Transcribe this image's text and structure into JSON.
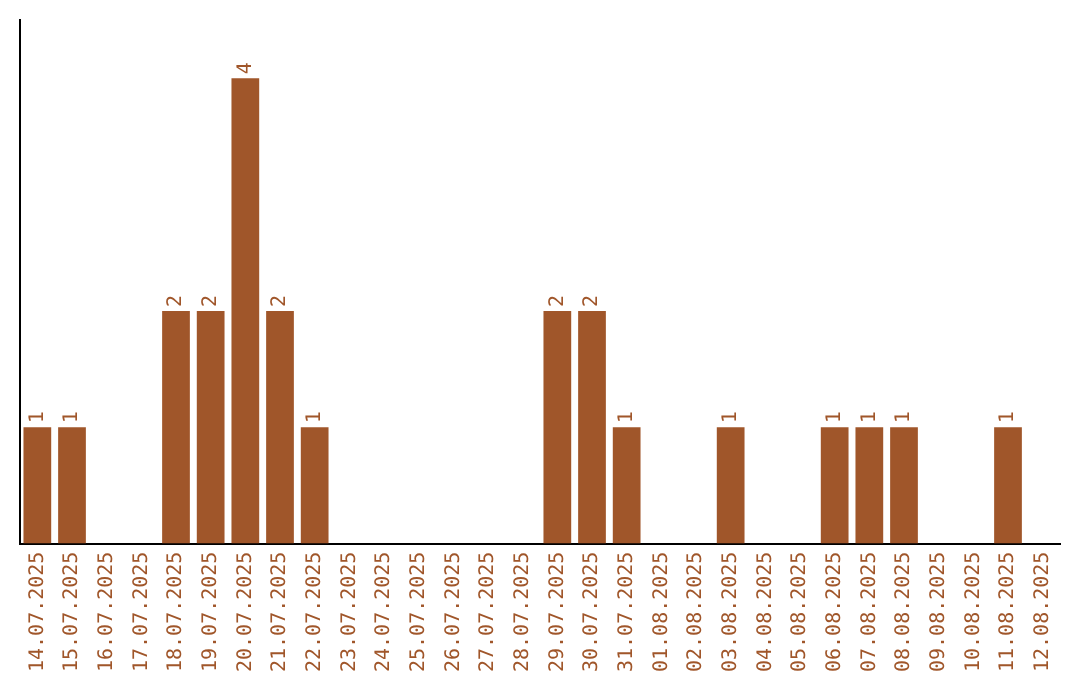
{
  "chart_data": {
    "type": "bar",
    "categories": [
      "14.07.2025",
      "15.07.2025",
      "16.07.2025",
      "17.07.2025",
      "18.07.2025",
      "19.07.2025",
      "20.07.2025",
      "21.07.2025",
      "22.07.2025",
      "23.07.2025",
      "24.07.2025",
      "25.07.2025",
      "26.07.2025",
      "27.07.2025",
      "28.07.2025",
      "29.07.2025",
      "30.07.2025",
      "31.07.2025",
      "01.08.2025",
      "02.08.2025",
      "03.08.2025",
      "04.08.2025",
      "05.08.2025",
      "06.08.2025",
      "07.08.2025",
      "08.08.2025",
      "09.08.2025",
      "10.08.2025",
      "11.08.2025",
      "12.08.2025"
    ],
    "values": [
      1,
      1,
      0,
      0,
      2,
      2,
      4,
      2,
      1,
      0,
      0,
      0,
      0,
      0,
      0,
      2,
      2,
      1,
      0,
      0,
      1,
      0,
      0,
      1,
      1,
      1,
      0,
      0,
      1,
      0
    ],
    "value_labels": [
      "1",
      "1",
      null,
      null,
      "2",
      "2",
      "4",
      "2",
      "1",
      null,
      null,
      null,
      null,
      null,
      null,
      "2",
      "2",
      "1",
      null,
      null,
      "1",
      null,
      null,
      "1",
      "1",
      "1",
      null,
      null,
      "1",
      null
    ],
    "color": "#a0562a",
    "grid": false,
    "legend": false,
    "tick_labels": "x"
  }
}
